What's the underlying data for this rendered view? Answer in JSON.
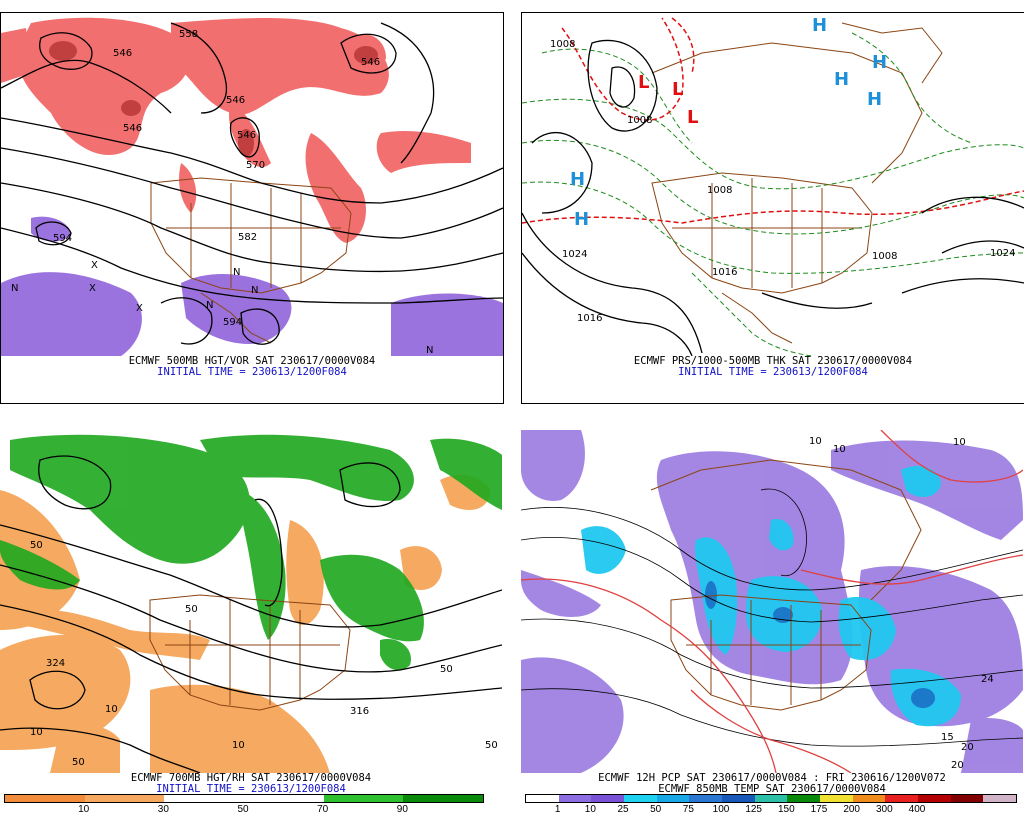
{
  "panels": [
    {
      "id": "p1",
      "caption_line1": "ECMWF 500MB HGT/VOR SAT 230617/0000V084",
      "caption_line2": "INITIAL TIME = 230613/1200F084",
      "contour_labels": [
        "558",
        "546",
        "546",
        "546",
        "570",
        "546",
        "546",
        "594",
        "582",
        "594"
      ],
      "symbols": [
        "X",
        "X",
        "X",
        "N",
        "N",
        "N",
        "N",
        "N"
      ]
    },
    {
      "id": "p2",
      "caption_line1": "ECMWF PRS/1000-500MB THK SAT 230617/0000V084",
      "caption_line2": "INITIAL TIME = 230613/1200F084",
      "contour_labels": [
        "1008",
        "1008",
        "1024",
        "1016",
        "1008",
        "1024",
        "1016",
        "1008"
      ],
      "pressure_centers": [
        "H",
        "H",
        "H",
        "H",
        "H",
        "H",
        "L",
        "L",
        "L"
      ]
    },
    {
      "id": "p3",
      "caption_line1": "ECMWF 700MB HGT/RH SAT 230617/0000V084",
      "caption_line2": "INITIAL TIME = 230613/1200F084",
      "contour_labels": [
        "324",
        "50",
        "50",
        "50",
        "10",
        "10",
        "10",
        "50",
        "50",
        "316"
      ],
      "colorbar": {
        "colors": [
          "#f08c3c",
          "#f6a860",
          "#ffffff",
          "#ffffff",
          "#2fc02f",
          "#0a8a0a"
        ],
        "ticks": [
          "10",
          "30",
          "50",
          "70",
          "90"
        ]
      }
    },
    {
      "id": "p4",
      "caption_line1": "ECMWF 12H PCP SAT 230617/0000V084 : FRI 230616/1200V072",
      "caption_line2": "ECMWF 850MB TEMP SAT 230617/0000V084",
      "contour_labels": [
        "10",
        "10",
        "10",
        "24",
        "15",
        "20",
        "20"
      ],
      "colorbar": {
        "colors": [
          "#ffffff",
          "#8c6ee0",
          "#7a52d6",
          "#1fd2f0",
          "#18a8e8",
          "#2a78d2",
          "#1858b8",
          "#2cc0a8",
          "#0a8a0a",
          "#f0e030",
          "#f08c1c",
          "#e82020",
          "#b40000",
          "#820000",
          "#d2b4c8"
        ],
        "ticks": [
          "1",
          "10",
          "25",
          "50",
          "75",
          "100",
          "125",
          "150",
          "175",
          "200",
          "300",
          "400"
        ]
      }
    }
  ],
  "colors": {
    "vorticity_red": "#e83030",
    "vorticity_purple": "#8a5ad8",
    "rh_green": "#1ea81e",
    "rh_orange": "#f5a050",
    "precip_cyan": "#20c8f0",
    "precip_purple": "#9a7ae0",
    "border_brown": "#8b4513",
    "thickness_green": "#1e8c1e",
    "thickness_red": "#e01010"
  }
}
